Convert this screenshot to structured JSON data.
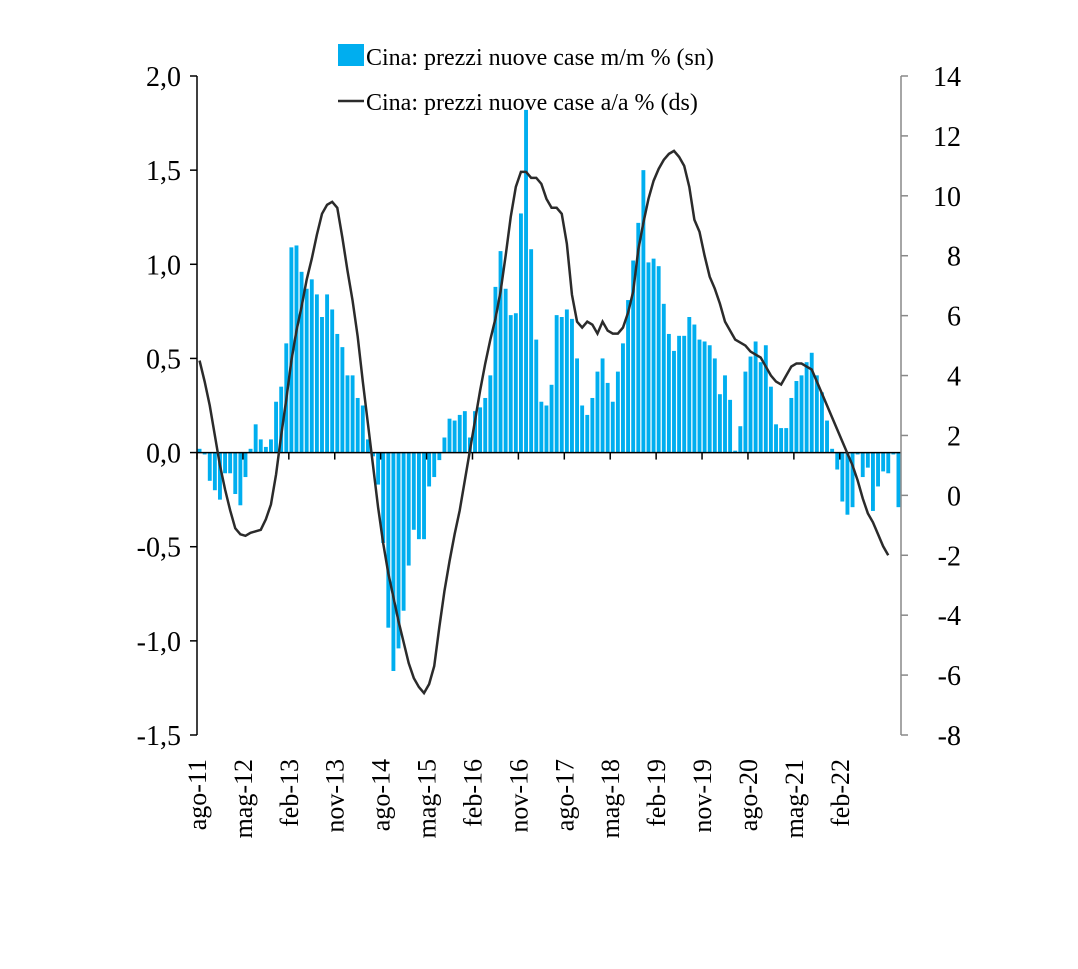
{
  "chart_data": {
    "type": "bar",
    "x_tick_labels": [
      "ago-11",
      "mag-12",
      "feb-13",
      "nov-13",
      "ago-14",
      "mag-15",
      "feb-16",
      "nov-16",
      "ago-17",
      "mag-18",
      "feb-19",
      "nov-19",
      "ago-20",
      "mag-21",
      "feb-22"
    ],
    "y_left": {
      "ticks": [
        "-1,5",
        "-1,0",
        "-0,5",
        "0,0",
        "0,5",
        "1,0",
        "1,5",
        "2,0"
      ],
      "ylim": [
        -1.5,
        2.0
      ]
    },
    "y_right": {
      "ticks": [
        "-8",
        "-6",
        "-4",
        "-2",
        "0",
        "2",
        "4",
        "6",
        "8",
        "10",
        "12",
        "14"
      ],
      "ylim": [
        -8,
        14
      ]
    },
    "grid": false,
    "legend_position": "top-center",
    "series": [
      {
        "name": "Cina: prezzi nuove case m/m % (sn)",
        "type": "bar",
        "axis": "left",
        "color": "#00AEEF",
        "values": [
          0.02,
          -0.01,
          -0.15,
          -0.2,
          -0.25,
          -0.11,
          -0.11,
          -0.22,
          -0.28,
          -0.13,
          0.02,
          0.15,
          0.07,
          0.03,
          0.07,
          0.27,
          0.35,
          0.58,
          1.09,
          1.1,
          0.96,
          0.87,
          0.92,
          0.84,
          0.72,
          0.84,
          0.76,
          0.63,
          0.56,
          0.41,
          0.41,
          0.29,
          0.25,
          0.07,
          -0.02,
          -0.17,
          -0.48,
          -0.93,
          -1.16,
          -1.04,
          -0.84,
          -0.6,
          -0.41,
          -0.46,
          -0.46,
          -0.18,
          -0.13,
          -0.04,
          0.08,
          0.18,
          0.17,
          0.2,
          0.22,
          0.08,
          0.22,
          0.24,
          0.29,
          0.41,
          0.88,
          1.07,
          0.87,
          0.73,
          0.74,
          1.27,
          1.82,
          1.08,
          0.6,
          0.27,
          0.25,
          0.36,
          0.73,
          0.72,
          0.76,
          0.71,
          0.5,
          0.25,
          0.2,
          0.29,
          0.43,
          0.5,
          0.37,
          0.27,
          0.43,
          0.58,
          0.81,
          1.02,
          1.22,
          1.5,
          1.01,
          1.03,
          0.99,
          0.79,
          0.63,
          0.54,
          0.62,
          0.62,
          0.72,
          0.68,
          0.6,
          0.59,
          0.57,
          0.5,
          0.31,
          0.41,
          0.28,
          0.01,
          0.14,
          0.43,
          0.51,
          0.59,
          0.48,
          0.57,
          0.35,
          0.15,
          0.13,
          0.13,
          0.29,
          0.38,
          0.41,
          0.48,
          0.53,
          0.41,
          0.32,
          0.17,
          0.02,
          -0.09,
          -0.26,
          -0.33,
          -0.29,
          -0.01,
          -0.13,
          -0.08,
          -0.31,
          -0.18,
          -0.1,
          -0.11,
          -0.01,
          -0.29
        ]
      },
      {
        "name": "Cina: prezzi nuove case a/a % (ds)",
        "type": "line",
        "axis": "right",
        "color": "#2B2B2B",
        "values": [
          4.5,
          3.8,
          3.0,
          2.0,
          1.0,
          0.2,
          -0.5,
          -1.1,
          -1.3,
          -1.35,
          -1.25,
          -1.2,
          -1.15,
          -0.8,
          -0.3,
          0.7,
          2.0,
          3.2,
          4.5,
          5.5,
          6.3,
          7.2,
          7.9,
          8.7,
          9.4,
          9.7,
          9.8,
          9.6,
          8.6,
          7.5,
          6.5,
          5.3,
          3.8,
          2.4,
          1.0,
          -0.4,
          -1.6,
          -2.6,
          -3.4,
          -4.2,
          -4.9,
          -5.6,
          -6.1,
          -6.4,
          -6.6,
          -6.3,
          -5.7,
          -4.4,
          -3.2,
          -2.2,
          -1.3,
          -0.5,
          0.5,
          1.5,
          2.5,
          3.5,
          4.4,
          5.2,
          5.9,
          6.8,
          8.0,
          9.3,
          10.3,
          10.8,
          10.8,
          10.6,
          10.6,
          10.4,
          9.9,
          9.6,
          9.6,
          9.4,
          8.4,
          6.7,
          5.8,
          5.6,
          5.8,
          5.7,
          5.4,
          5.8,
          5.5,
          5.4,
          5.4,
          5.6,
          6.1,
          6.8,
          8.2,
          9.1,
          9.9,
          10.5,
          10.9,
          11.2,
          11.4,
          11.5,
          11.3,
          11.0,
          10.3,
          9.2,
          8.8,
          8.0,
          7.3,
          6.9,
          6.4,
          5.8,
          5.5,
          5.2,
          5.1,
          5.0,
          4.8,
          4.7,
          4.6,
          4.3,
          4.0,
          3.8,
          3.7,
          4.0,
          4.3,
          4.4,
          4.4,
          4.3,
          4.2,
          3.8,
          3.4,
          3.0,
          2.6,
          2.2,
          1.8,
          1.4,
          1.0,
          0.5,
          -0.1,
          -0.6,
          -0.9,
          -1.3,
          -1.7,
          -2.0
        ]
      }
    ]
  }
}
